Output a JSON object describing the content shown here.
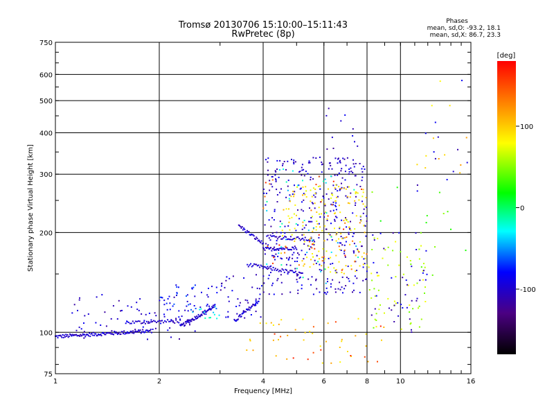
{
  "chart_data": {
    "type": "scatter",
    "title": "Tromsø 20130706 15:10:00–15:11:43",
    "subtitle": "RwPretec (8p)",
    "xlabel": "Frequency [MHz]",
    "ylabel": "Stationary phase Virtual Height [km]",
    "x_scale": "log",
    "y_scale": "log",
    "xlim": [
      1,
      16
    ],
    "ylim": [
      75,
      750
    ],
    "x_ticks": [
      1,
      2,
      4,
      6,
      8,
      10,
      16
    ],
    "x_tick_labels": [
      "1",
      "2",
      "4",
      "6",
      "8",
      "10",
      "16"
    ],
    "y_ticks": [
      75,
      100,
      200,
      300,
      400,
      500,
      600,
      750
    ],
    "y_tick_labels": [
      "75",
      "100",
      "200",
      "300",
      "400",
      "500",
      "600",
      "750"
    ],
    "grid": true,
    "phase_stats": {
      "title": "Phases",
      "o_mode": "mean, sd,O:  -93.2, 18.1",
      "x_mode": "mean, sd,X:  86.7, 23.3"
    },
    "colorbar": {
      "label": "[deg]",
      "range": [
        -180,
        180
      ],
      "ticks": [
        100,
        0,
        -100
      ],
      "tick_labels": [
        "100",
        "0",
        "-100"
      ]
    },
    "traces": [
      {
        "x0": 1.0,
        "x1": 1.9,
        "y0": 97,
        "y1": 101,
        "phase": -100,
        "n": 120
      },
      {
        "x0": 1.6,
        "x1": 2.3,
        "y0": 107,
        "y1": 108,
        "phase": -100,
        "n": 40
      },
      {
        "x0": 2.3,
        "x1": 2.9,
        "y0": 104,
        "y1": 120,
        "phase": -100,
        "n": 60
      },
      {
        "x0": 3.3,
        "x1": 3.9,
        "y0": 108,
        "y1": 125,
        "phase": -95,
        "n": 40
      },
      {
        "x0": 3.4,
        "x1": 4.0,
        "y0": 210,
        "y1": 185,
        "phase": -100,
        "n": 30
      },
      {
        "x0": 3.6,
        "x1": 5.2,
        "y0": 160,
        "y1": 150,
        "phase": -100,
        "n": 50
      },
      {
        "x0": 4.0,
        "x1": 5.0,
        "y0": 178,
        "y1": 180,
        "phase": -100,
        "n": 40
      },
      {
        "x0": 4.1,
        "x1": 5.6,
        "y0": 195,
        "y1": 190,
        "phase": -100,
        "n": 40
      }
    ],
    "clusters": [
      {
        "x": [
          1.1,
          2.6
        ],
        "y": [
          95,
          130
        ],
        "phase": -100,
        "n": 70
      },
      {
        "x": [
          2.0,
          3.0
        ],
        "y": [
          110,
          140
        ],
        "phase": -80,
        "n": 45
      },
      {
        "x": [
          2.5,
          3.0
        ],
        "y": [
          110,
          120
        ],
        "phase": -30,
        "n": 12
      },
      {
        "x": [
          3.0,
          4.0
        ],
        "y": [
          110,
          150
        ],
        "phase": -100,
        "n": 40
      },
      {
        "x": [
          4.0,
          8.0
        ],
        "y": [
          130,
          340
        ],
        "phase": -100,
        "n": 380
      },
      {
        "x": [
          4.5,
          8.0
        ],
        "y": [
          150,
          280
        ],
        "phase": 90,
        "n": 170
      },
      {
        "x": [
          4.0,
          8.0
        ],
        "y": [
          150,
          300
        ],
        "phase": 150,
        "n": 40
      },
      {
        "x": [
          4.0,
          8.0
        ],
        "y": [
          140,
          320
        ],
        "phase": -30,
        "n": 40
      },
      {
        "x": [
          8.0,
          12.0
        ],
        "y": [
          100,
          200
        ],
        "phase": 60,
        "n": 60
      },
      {
        "x": [
          8.0,
          12.0
        ],
        "y": [
          100,
          200
        ],
        "phase": -100,
        "n": 40
      },
      {
        "x": [
          3.5,
          9.0
        ],
        "y": [
          80,
          110
        ],
        "phase": 100,
        "n": 40
      },
      {
        "x": [
          3.5,
          9.0
        ],
        "y": [
          80,
          110
        ],
        "phase": 150,
        "n": 12
      },
      {
        "x": [
          11.0,
          16.0
        ],
        "y": [
          300,
          600
        ],
        "phase": 100,
        "n": 12
      },
      {
        "x": [
          11.0,
          16.0
        ],
        "y": [
          250,
          600
        ],
        "phase": -100,
        "n": 12
      },
      {
        "x": [
          8.0,
          16.0
        ],
        "y": [
          130,
          300
        ],
        "phase": 40,
        "n": 15
      },
      {
        "x": [
          6.0,
          8.0
        ],
        "y": [
          290,
          480
        ],
        "phase": -100,
        "n": 20
      }
    ]
  }
}
